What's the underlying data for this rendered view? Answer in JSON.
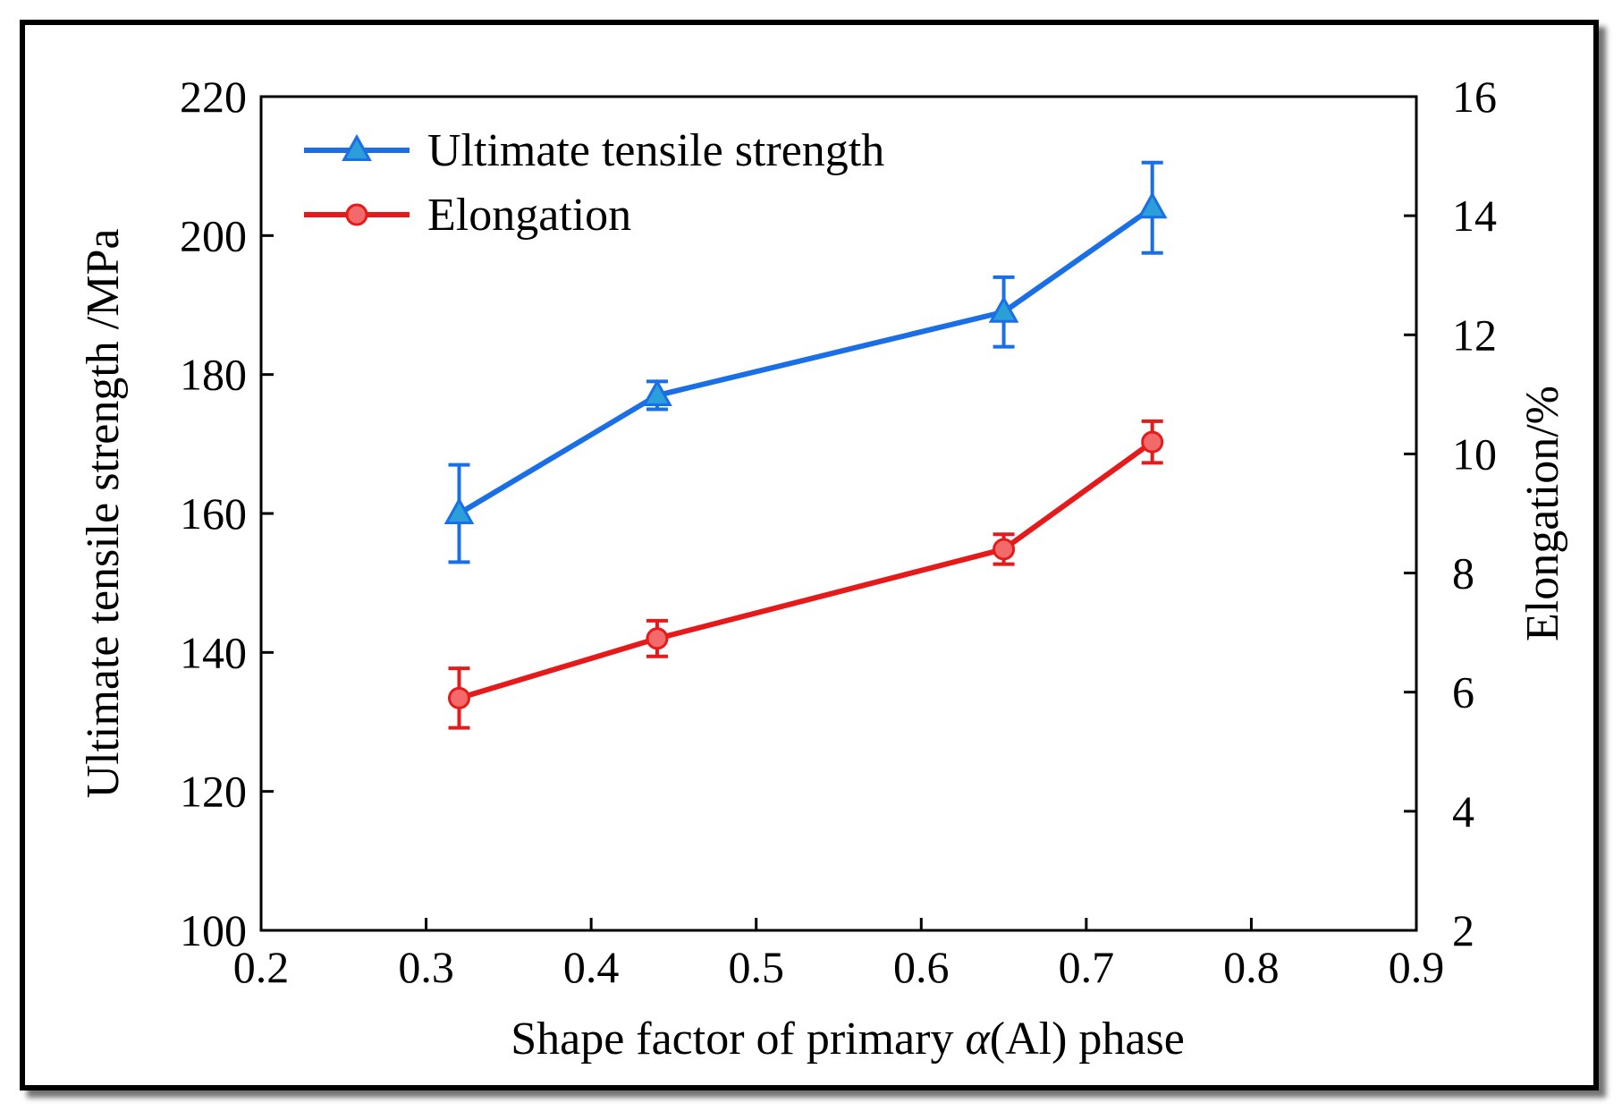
{
  "chart_data": {
    "type": "line",
    "xlabel_parts": [
      "Shape factor of primary ",
      "α",
      "(Al) phase"
    ],
    "ylabel_left": "Ultimate tensile strength /MPa",
    "ylabel_right": "Elongation/%",
    "xlim": [
      0.2,
      0.9
    ],
    "ylim_left": [
      100,
      220
    ],
    "ylim_right": [
      2,
      16
    ],
    "x_ticks": [
      "0.2",
      "0.3",
      "0.4",
      "0.5",
      "0.6",
      "0.7",
      "0.8",
      "0.9"
    ],
    "y_ticks_left": [
      "100",
      "120",
      "140",
      "160",
      "180",
      "200",
      "220"
    ],
    "y_ticks_right": [
      "2",
      "4",
      "6",
      "8",
      "10",
      "12",
      "14",
      "16"
    ],
    "legend_position": "top-left",
    "series": [
      {
        "name": "Ultimate tensile strength",
        "axis": "left",
        "marker": "triangle",
        "color": "#1a6fe6",
        "marker_fill": "#2a9fd8",
        "x": [
          0.32,
          0.44,
          0.65,
          0.74
        ],
        "y": [
          160,
          177,
          189,
          204
        ],
        "err": [
          7,
          2,
          5,
          6.5
        ]
      },
      {
        "name": "Elongation",
        "axis": "right",
        "marker": "circle",
        "color": "#e61a1a",
        "marker_fill": "#f26a6a",
        "x": [
          0.32,
          0.44,
          0.65,
          0.74
        ],
        "y": [
          5.9,
          6.9,
          8.4,
          10.2
        ],
        "err": [
          0.5,
          0.3,
          0.25,
          0.35
        ]
      }
    ]
  }
}
